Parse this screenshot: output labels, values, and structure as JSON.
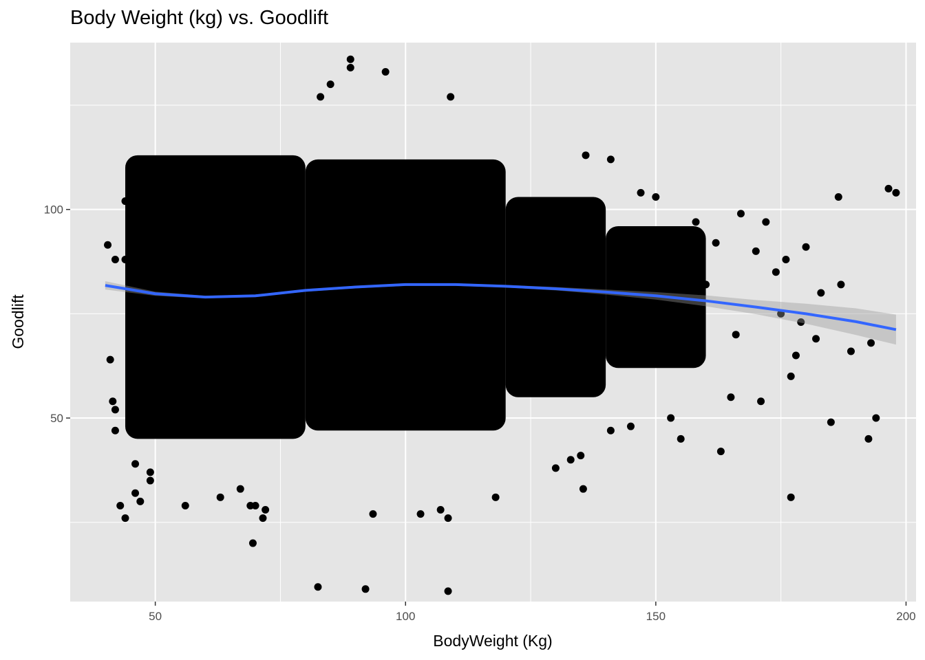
{
  "chart_data": {
    "type": "scatter",
    "title": "Body Weight (kg) vs. Goodlift",
    "xlabel": "BodyWeight (Kg)",
    "ylabel": "Goodlift",
    "xlim": [
      33,
      202
    ],
    "ylim": [
      6,
      140
    ],
    "x_ticks": [
      50,
      100,
      150,
      200
    ],
    "y_ticks": [
      50,
      100
    ],
    "x_minor": [
      75,
      125,
      175
    ],
    "y_minor": [
      25,
      75,
      125
    ],
    "grid": true,
    "legend": "none",
    "colors": {
      "panel": "#e5e5e5",
      "grid": "#ffffff",
      "points": "#000000",
      "smooth_line": "#3366ff",
      "ribbon": "#999999"
    },
    "dense_regions": [
      {
        "x": [
          44,
          80
        ],
        "y": [
          45,
          113
        ]
      },
      {
        "x": [
          80,
          120
        ],
        "y": [
          47,
          112
        ]
      },
      {
        "x": [
          120,
          140
        ],
        "y": [
          55,
          103
        ]
      },
      {
        "x": [
          140,
          160
        ],
        "y": [
          62,
          96
        ]
      }
    ],
    "sparse_points": [
      [
        40.5,
        91.5
      ],
      [
        41,
        64
      ],
      [
        41.5,
        54
      ],
      [
        42,
        88
      ],
      [
        42,
        52
      ],
      [
        42,
        47
      ],
      [
        43,
        29
      ],
      [
        44,
        26
      ],
      [
        44,
        102
      ],
      [
        44,
        88
      ],
      [
        45,
        108
      ],
      [
        46,
        60
      ],
      [
        46,
        39
      ],
      [
        46,
        32
      ],
      [
        47,
        30
      ],
      [
        49,
        35
      ],
      [
        49,
        37
      ],
      [
        56,
        29
      ],
      [
        63,
        31
      ],
      [
        67,
        33
      ],
      [
        69,
        29
      ],
      [
        69.5,
        20
      ],
      [
        70,
        29
      ],
      [
        71.5,
        26
      ],
      [
        72,
        28
      ],
      [
        82.5,
        9.5
      ],
      [
        83,
        127
      ],
      [
        85,
        130
      ],
      [
        89,
        136
      ],
      [
        89,
        134
      ],
      [
        92,
        9
      ],
      [
        93.5,
        27
      ],
      [
        96,
        133
      ],
      [
        103,
        27
      ],
      [
        107,
        28
      ],
      [
        108.5,
        26
      ],
      [
        108.5,
        8.5
      ],
      [
        109,
        127
      ],
      [
        118,
        31
      ],
      [
        130,
        38
      ],
      [
        133,
        40
      ],
      [
        135,
        41
      ],
      [
        135.5,
        33
      ],
      [
        136,
        113
      ],
      [
        141,
        47
      ],
      [
        141,
        112
      ],
      [
        145,
        48
      ],
      [
        147,
        104
      ],
      [
        150,
        103
      ],
      [
        153,
        50
      ],
      [
        155,
        45
      ],
      [
        157,
        90
      ],
      [
        158,
        97
      ],
      [
        160,
        82
      ],
      [
        162,
        92
      ],
      [
        163,
        42
      ],
      [
        165,
        55
      ],
      [
        166,
        70
      ],
      [
        167,
        99
      ],
      [
        170,
        90
      ],
      [
        171,
        54
      ],
      [
        172,
        97
      ],
      [
        174,
        85
      ],
      [
        175,
        75
      ],
      [
        176,
        88
      ],
      [
        177,
        31
      ],
      [
        177,
        60
      ],
      [
        178,
        65
      ],
      [
        179,
        73
      ],
      [
        180,
        91
      ],
      [
        182,
        69
      ],
      [
        183,
        80
      ],
      [
        185,
        49
      ],
      [
        186.5,
        103
      ],
      [
        187,
        82
      ],
      [
        189,
        66
      ],
      [
        192.5,
        45
      ],
      [
        193,
        68
      ],
      [
        194,
        50
      ],
      [
        196.5,
        105
      ],
      [
        198,
        104
      ]
    ],
    "series": [
      {
        "type": "smooth",
        "x": [
          40,
          50,
          60,
          70,
          80,
          90,
          100,
          110,
          120,
          130,
          140,
          150,
          160,
          170,
          180,
          190,
          198
        ],
        "y": [
          81.8,
          79.8,
          79.0,
          79.3,
          80.6,
          81.4,
          82.0,
          82.0,
          81.6,
          81.0,
          80.2,
          79.3,
          78.1,
          76.6,
          75.0,
          73.1,
          71.2
        ],
        "lower": [
          80.8,
          79.3,
          78.7,
          79.0,
          80.3,
          81.1,
          81.7,
          81.7,
          81.3,
          80.6,
          79.6,
          78.4,
          76.8,
          74.9,
          72.6,
          69.9,
          67.6
        ],
        "upper": [
          82.8,
          80.3,
          79.3,
          79.6,
          80.9,
          81.7,
          82.3,
          82.3,
          81.9,
          81.4,
          80.8,
          80.2,
          79.4,
          78.3,
          77.4,
          76.3,
          74.8
        ]
      }
    ]
  }
}
